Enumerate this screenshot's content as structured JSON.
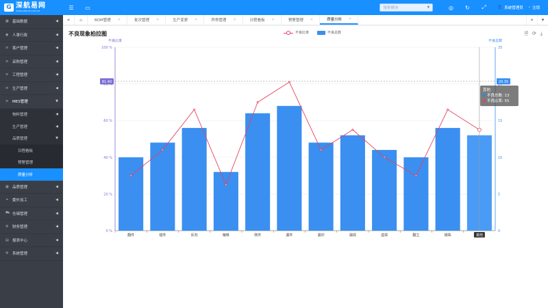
{
  "app": {
    "logo_title": "深航易网",
    "logo_subtitle": "WWW.GDBLUE.COM.CN",
    "search_placeholder": "搜索模块",
    "user_name": "系统管理员",
    "logout_label": "注销"
  },
  "sidebar": {
    "items": [
      {
        "label": "基础数据"
      },
      {
        "label": "人事行政"
      },
      {
        "label": "客户管理"
      },
      {
        "label": "采购管理"
      },
      {
        "label": "工程管理"
      },
      {
        "label": "生产管理"
      },
      {
        "label": "MES管理"
      },
      {
        "label": "品质管理"
      },
      {
        "label": "委外加工"
      },
      {
        "label": "仓储管理"
      },
      {
        "label": "财务管理"
      },
      {
        "label": "报表中心"
      },
      {
        "label": "系统管理"
      }
    ],
    "mes_sub": [
      {
        "label": "物料管理"
      },
      {
        "label": "生产管理"
      },
      {
        "label": "品质管理"
      }
    ],
    "quality_sub": [
      {
        "label": "日程看板"
      },
      {
        "label": "预警管理"
      },
      {
        "label": "质量分析"
      }
    ]
  },
  "tabs": [
    {
      "label": "BOM管理"
    },
    {
      "label": "批次管理"
    },
    {
      "label": "生产变更"
    },
    {
      "label": "异常管理"
    },
    {
      "label": "日程看板"
    },
    {
      "label": "预警管理"
    },
    {
      "label": "质量分析"
    }
  ],
  "panel": {
    "title": "不良现象柏拉图"
  },
  "chart_data": {
    "type": "bar",
    "categories": [
      "翻件",
      "错件",
      "反向",
      "偏移",
      "侧件",
      "漏件",
      "漏印",
      "漏焊",
      "虚焊",
      "翻立",
      "锡珠",
      "其他"
    ],
    "series": [
      {
        "name": "不良总数",
        "type": "bar",
        "axis": "right",
        "values": [
          10,
          12,
          14,
          8,
          16,
          17,
          12,
          13,
          11,
          10,
          14,
          13
        ]
      },
      {
        "name": "不良比率",
        "type": "line",
        "axis": "left",
        "values": [
          30,
          44,
          66,
          25,
          70,
          81,
          44,
          55,
          40,
          30,
          66,
          55
        ]
      }
    ],
    "left_axis": {
      "label": "不良比率",
      "ylim": [
        0,
        100
      ],
      "ticks": [
        "0 %",
        "20 %",
        "40 %",
        "60 %",
        "80 %",
        "100 %"
      ]
    },
    "right_axis": {
      "label": "不良总数",
      "ylim": [
        0,
        25
      ],
      "ticks": [
        "0",
        "5",
        "10",
        "15",
        "20",
        "25"
      ]
    },
    "crosshair": {
      "left_value": "81.40",
      "right_value": "20.35",
      "category": "其他"
    },
    "tooltip": {
      "title": "其他",
      "rows": [
        {
          "label": "不良总数: 13",
          "color": "#1890ff"
        },
        {
          "label": "不良比率: 55",
          "color": "#e2445f"
        }
      ]
    },
    "colors": {
      "bar": "#3a8ff0",
      "bar_highlight": "#4a9bf5",
      "line": "#e2445f",
      "left_axis": "#7b6fd6",
      "right_axis": "#3a8ff0"
    }
  }
}
